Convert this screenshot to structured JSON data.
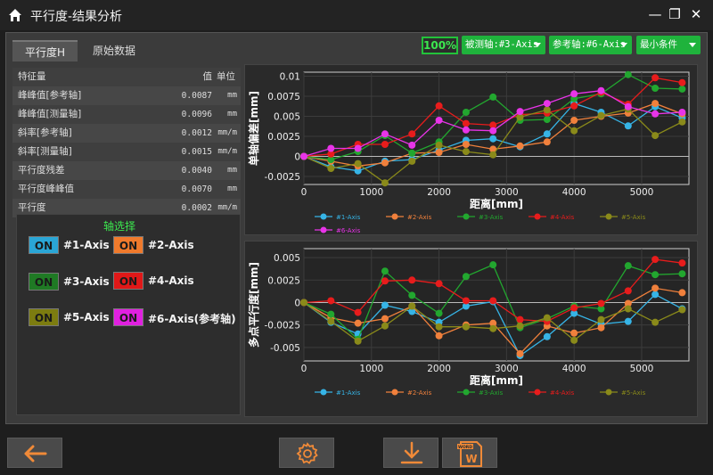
{
  "window": {
    "title": "平行度-结果分析",
    "minimize": "—",
    "maximize": "❐",
    "close": "✕"
  },
  "tabs": [
    {
      "label": "平行度H"
    },
    {
      "label": "原始数据"
    }
  ],
  "toolbar": {
    "percent": "100%",
    "measured_axis": "被测轴:#3-Axis",
    "reference_axis": "参考轴:#6-Axis",
    "condition": "最小条件"
  },
  "table": {
    "header": {
      "name": "特征量",
      "value": "值",
      "unit": "单位"
    },
    "rows": [
      {
        "name": "峰峰值[参考轴]",
        "value": "0.0087",
        "unit": "mm"
      },
      {
        "name": "峰峰值[测量轴]",
        "value": "0.0096",
        "unit": "mm"
      },
      {
        "name": "斜率[参考轴]",
        "value": "0.0012",
        "unit": "mm/m"
      },
      {
        "name": "斜率[测量轴]",
        "value": "0.0015",
        "unit": "mm/m"
      },
      {
        "name": "平行度残差",
        "value": "0.0040",
        "unit": "mm"
      },
      {
        "name": "平行度峰峰值",
        "value": "0.0070",
        "unit": "mm"
      },
      {
        "name": "平行度",
        "value": "0.0002",
        "unit": "mm/m"
      }
    ]
  },
  "axis_select": {
    "title": "轴选择",
    "axes": [
      {
        "state": "ON",
        "label": "#1-Axis",
        "color": "#2aa6d6"
      },
      {
        "state": "ON",
        "label": "#2-Axis",
        "color": "#f07a2c"
      },
      {
        "state": "ON",
        "label": "#3-Axis",
        "color": "#1f7a24"
      },
      {
        "state": "ON",
        "label": "#4-Axis",
        "color": "#e01818"
      },
      {
        "state": "ON",
        "label": "#5-Axis",
        "color": "#7c7c10"
      },
      {
        "state": "ON",
        "label": "#6-Axis(参考轴)",
        "color": "#e020e0"
      }
    ]
  },
  "chart_data": [
    {
      "type": "line",
      "xlabel": "距离[mm]",
      "ylabel": "单轴偏差[mm]",
      "xlim": [
        0,
        5700
      ],
      "ylim": [
        -0.0035,
        0.0105
      ],
      "x_ticks": [
        "0",
        "1000",
        "2000",
        "3000",
        "4000",
        "5000"
      ],
      "y_ticks": [
        "-0.0025",
        "0",
        "0.0025",
        "0.005",
        "0.0075",
        "0.01"
      ],
      "y_tick_values": [
        -0.0025,
        0,
        0.0025,
        0.005,
        0.0075,
        0.01
      ],
      "x_tick_values": [
        0,
        1000,
        2000,
        3000,
        4000,
        5000
      ],
      "grid": true,
      "legend": "bottom",
      "x": [
        0,
        400,
        800,
        1200,
        1600,
        2000,
        2400,
        2800,
        3200,
        3600,
        4000,
        4400,
        4800,
        5200,
        5600
      ],
      "series": [
        {
          "name": "#1-Axis",
          "color": "#36b4e6",
          "values": [
            0,
            -0.0013,
            -0.0018,
            -0.0006,
            -0.0004,
            0.0008,
            0.002,
            0.0022,
            0.0012,
            0.0028,
            0.0066,
            0.0055,
            0.0038,
            0.0062,
            0.0048
          ]
        },
        {
          "name": "#2-Axis",
          "color": "#f0803c",
          "values": [
            0,
            -0.0006,
            -0.0012,
            -0.0008,
            0.0004,
            0.0005,
            0.0015,
            0.0009,
            0.0013,
            0.0018,
            0.0045,
            0.005,
            0.0054,
            0.0066,
            0.0053
          ]
        },
        {
          "name": "#3-Axis",
          "color": "#22a72f",
          "values": [
            0,
            -0.0004,
            0.0006,
            0.0026,
            0.0004,
            0.0018,
            0.0055,
            0.0074,
            0.0045,
            0.0046,
            0.0072,
            0.0078,
            0.0102,
            0.0085,
            0.0084
          ]
        },
        {
          "name": "#4-Axis",
          "color": "#e81c1c",
          "values": [
            0,
            0.0003,
            0.0015,
            0.0015,
            0.0028,
            0.0063,
            0.0041,
            0.0039,
            0.0052,
            0.0054,
            0.0063,
            0.008,
            0.0065,
            0.0098,
            0.0092
          ]
        },
        {
          "name": "#5-Axis",
          "color": "#8a8a1a",
          "values": [
            0,
            -0.0015,
            -0.0009,
            -0.0033,
            -0.0006,
            0.0014,
            0.0006,
            0.0002,
            0.0049,
            0.0058,
            0.0032,
            0.0051,
            0.0059,
            0.0026,
            0.0043
          ]
        },
        {
          "name": "#6-Axis",
          "color": "#e834e8",
          "values": [
            0,
            0.001,
            0.001,
            0.0028,
            0.0014,
            0.0045,
            0.0033,
            0.0032,
            0.0056,
            0.0066,
            0.0078,
            0.0082,
            0.0062,
            0.0053,
            0.0055
          ]
        }
      ]
    },
    {
      "type": "line",
      "xlabel": "距离[mm]",
      "ylabel": "多点平行度[mm]",
      "xlim": [
        0,
        5700
      ],
      "ylim": [
        -0.0065,
        0.006
      ],
      "x_ticks": [
        "0",
        "1000",
        "2000",
        "3000",
        "4000",
        "5000"
      ],
      "y_ticks": [
        "-0.005",
        "-0.0025",
        "0",
        "0.0025",
        "0.005"
      ],
      "y_tick_values": [
        -0.005,
        -0.0025,
        0,
        0.0025,
        0.005
      ],
      "x_tick_values": [
        0,
        1000,
        2000,
        3000,
        4000,
        5000
      ],
      "grid": true,
      "legend": "bottom",
      "x": [
        0,
        400,
        800,
        1200,
        1600,
        2000,
        2400,
        2800,
        3200,
        3600,
        4000,
        4400,
        4800,
        5200,
        5600
      ],
      "series": [
        {
          "name": "#1-Axis",
          "color": "#36b4e6",
          "values": [
            0,
            -0.0022,
            -0.0035,
            -0.0003,
            -0.001,
            -0.0022,
            -0.0004,
            0.0001,
            -0.0059,
            -0.0038,
            -0.0012,
            -0.0024,
            -0.0021,
            0.0009,
            -0.0007
          ]
        },
        {
          "name": "#2-Axis",
          "color": "#f0803c",
          "values": [
            0,
            -0.0017,
            -0.0023,
            -0.0018,
            -0.0004,
            -0.0037,
            -0.0025,
            -0.0023,
            -0.0057,
            -0.0026,
            -0.0034,
            -0.0028,
            -0.0001,
            0.0016,
            0.0011
          ]
        },
        {
          "name": "#3-Axis",
          "color": "#22a72f",
          "values": [
            0,
            -0.0013,
            -0.0041,
            0.0035,
            0.0008,
            -0.0012,
            0.0029,
            0.0042,
            -0.0028,
            -0.0018,
            -0.0004,
            -0.0007,
            0.0041,
            0.0031,
            0.0032
          ]
        },
        {
          "name": "#4-Axis",
          "color": "#e81c1c",
          "values": [
            0,
            0.0002,
            -0.0011,
            0.0024,
            0.0025,
            0.0021,
            0.0002,
            0.0002,
            -0.0019,
            -0.0021,
            -0.0006,
            -0.0001,
            0.0013,
            0.0048,
            0.0044
          ]
        },
        {
          "name": "#5-Axis",
          "color": "#8a8a1a",
          "values": [
            0,
            -0.0021,
            -0.0043,
            -0.0026,
            -0.0004,
            -0.0027,
            -0.0027,
            -0.0029,
            -0.0026,
            -0.0017,
            -0.0042,
            -0.0019,
            -0.0007,
            -0.0022,
            -0.0008
          ]
        }
      ]
    }
  ],
  "bottom": {
    "back": "back-arrow-icon",
    "settings": "gear-icon",
    "download": "download-icon",
    "word": "word-export-icon",
    "word_letter": "W",
    "word_tag": "WORD"
  }
}
